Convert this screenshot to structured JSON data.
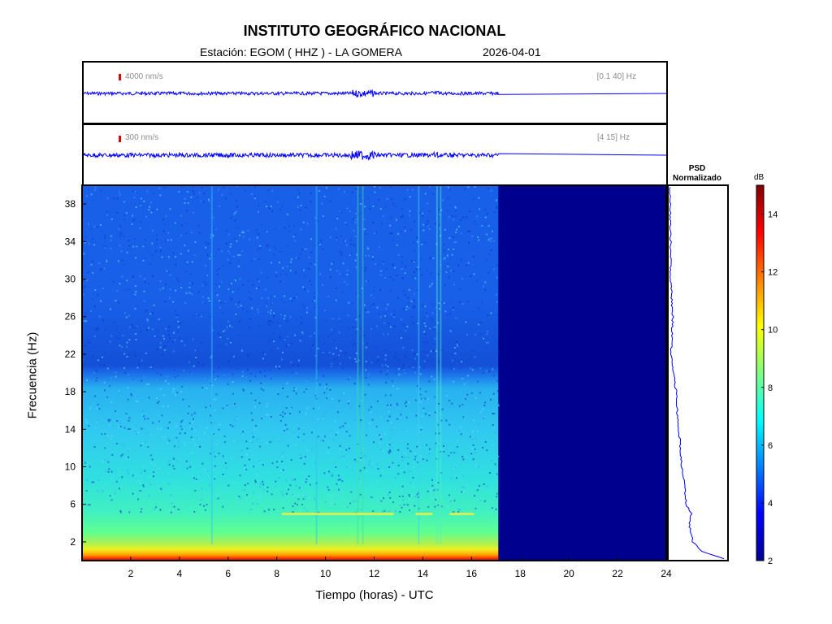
{
  "header": {
    "institute": "INSTITUTO GEOGRÁFICO NACIONAL",
    "station_line": "Estación:  EGOM ( HHZ ) - LA GOMERA",
    "date": "2026-04-01"
  },
  "trace_panels": [
    {
      "amplitude_label": "4000 nm/s",
      "filter_label": "[0.1 40] Hz"
    },
    {
      "amplitude_label": "300 nm/s",
      "filter_label": "[4 15] Hz"
    }
  ],
  "psd": {
    "title_line1": "PSD",
    "title_line2": "Normalizado"
  },
  "colors": {
    "trace": "#0000ff",
    "scale_marker": "#e00000",
    "background_blue": "#00008f"
  },
  "chart_data": {
    "type": "heatmap",
    "title": "INSTITUTO GEOGRÁFICO NACIONAL",
    "xlabel": "Tiempo (horas) - UTC",
    "ylabel": "Frecuencia  (Hz)",
    "xlim": [
      0,
      24
    ],
    "ylim": [
      0,
      40
    ],
    "x_ticks": [
      2,
      4,
      6,
      8,
      10,
      12,
      14,
      16,
      18,
      20,
      22,
      24
    ],
    "y_ticks": [
      2,
      6,
      10,
      14,
      18,
      22,
      26,
      30,
      34,
      38
    ],
    "data_end_hour": 17.1,
    "colorbar": {
      "unit": "dB",
      "range": [
        2,
        15
      ],
      "ticks": [
        2,
        4,
        6,
        8,
        10,
        12,
        14
      ],
      "colormap": "jet"
    },
    "mean_level_db_by_frequency": [
      {
        "freq": 0.5,
        "db": 11.5
      },
      {
        "freq": 1.5,
        "db": 8.5
      },
      {
        "freq": 3,
        "db": 7.5
      },
      {
        "freq": 5.5,
        "db": 7.2
      },
      {
        "freq": 8,
        "db": 6.6
      },
      {
        "freq": 14,
        "db": 6.2
      },
      {
        "freq": 20,
        "db": 5.8
      },
      {
        "freq": 22,
        "db": 4.6
      },
      {
        "freq": 30,
        "db": 4.4
      },
      {
        "freq": 40,
        "db": 4.3
      }
    ],
    "psd_normalized_by_frequency": [
      {
        "freq": 0.2,
        "value": 1.0
      },
      {
        "freq": 1,
        "value": 0.58
      },
      {
        "freq": 2,
        "value": 0.42
      },
      {
        "freq": 4,
        "value": 0.35
      },
      {
        "freq": 5,
        "value": 0.4
      },
      {
        "freq": 6,
        "value": 0.3
      },
      {
        "freq": 8,
        "value": 0.27
      },
      {
        "freq": 10,
        "value": 0.22
      },
      {
        "freq": 12,
        "value": 0.2
      },
      {
        "freq": 14,
        "value": 0.17
      },
      {
        "freq": 16,
        "value": 0.14
      },
      {
        "freq": 18,
        "value": 0.12
      },
      {
        "freq": 20,
        "value": 0.07
      },
      {
        "freq": 22,
        "value": 0.03
      },
      {
        "freq": 26,
        "value": 0.06
      },
      {
        "freq": 30,
        "value": 0.02
      },
      {
        "freq": 34,
        "value": 0.02
      },
      {
        "freq": 38,
        "value": 0.01
      },
      {
        "freq": 40,
        "value": 0.0
      }
    ]
  }
}
